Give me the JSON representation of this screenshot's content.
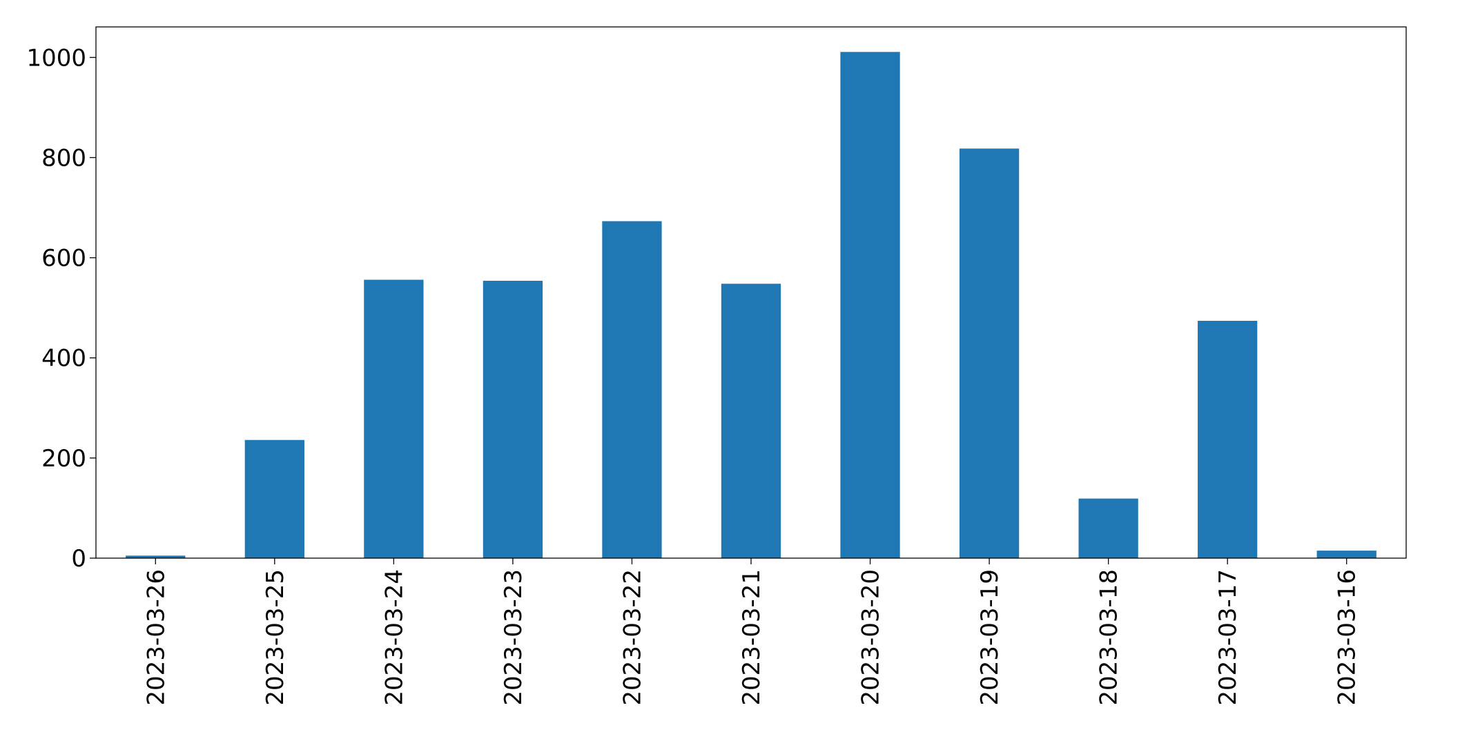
{
  "chart_data": {
    "type": "bar",
    "categories": [
      "2023-03-26",
      "2023-03-25",
      "2023-03-24",
      "2023-03-23",
      "2023-03-22",
      "2023-03-21",
      "2023-03-20",
      "2023-03-19",
      "2023-03-18",
      "2023-03-17",
      "2023-03-16"
    ],
    "values": [
      5,
      236,
      556,
      554,
      673,
      548,
      1011,
      818,
      119,
      474,
      15
    ],
    "color": "#1f77b4",
    "ylim": [
      0,
      1061
    ],
    "yticks": [
      0,
      200,
      400,
      600,
      800,
      1000
    ],
    "grid": false
  }
}
